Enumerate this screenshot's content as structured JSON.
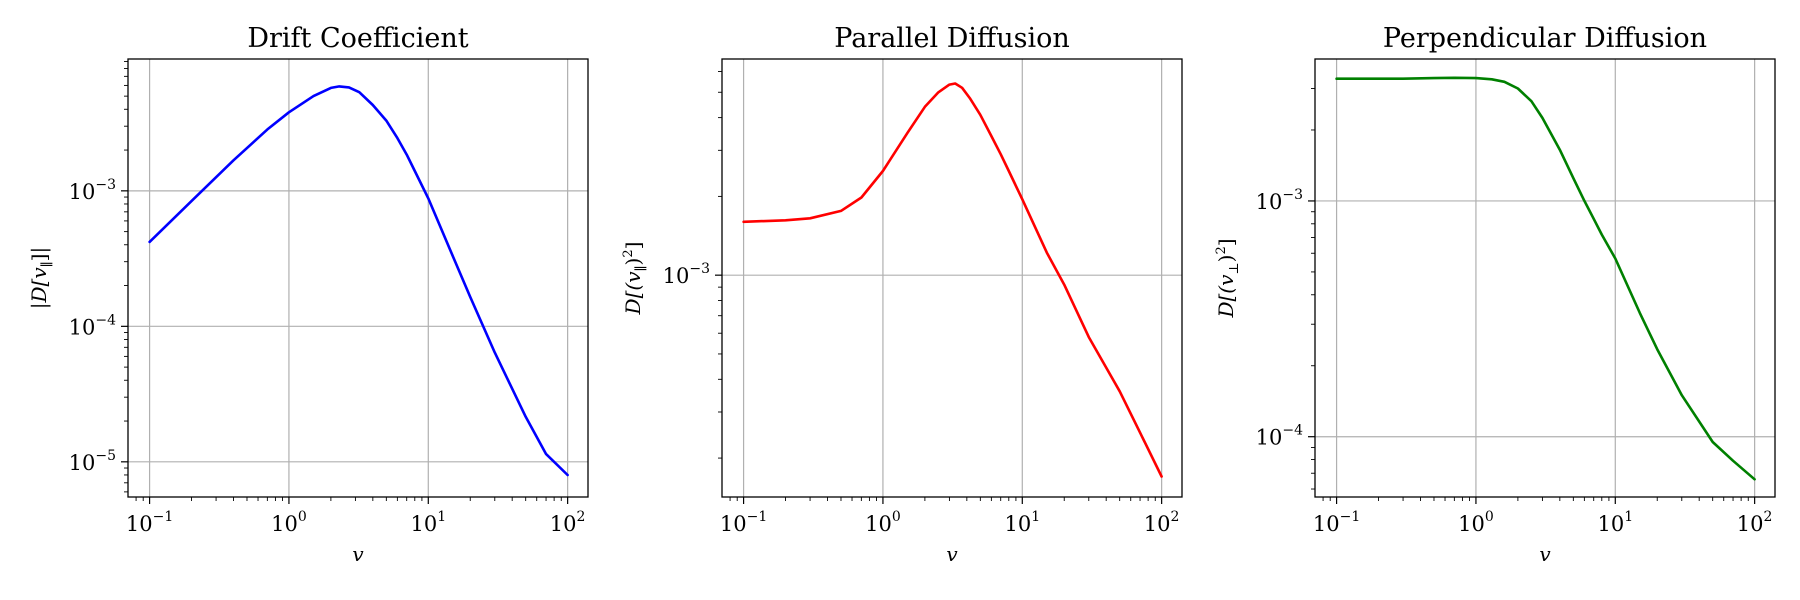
{
  "chart_data": [
    {
      "type": "line",
      "title": "Drift Coefficient",
      "xlabel": "v",
      "ylabel": "|D[v_∥]|",
      "xscale": "log",
      "yscale": "log",
      "xlim": [
        0.07,
        140
      ],
      "ylim": [
        5.5e-06,
        0.0094
      ],
      "grid": true,
      "xticks": [
        0.1,
        1,
        10,
        100
      ],
      "xtick_labels": [
        "10^-1",
        "10^0",
        "10^1",
        "10^2"
      ],
      "yticks": [
        1e-05,
        0.0001,
        0.001
      ],
      "ytick_labels": [
        "10^-5",
        "10^-4",
        "10^-3"
      ],
      "series": [
        {
          "color": "#0000ff",
          "x": [
            0.1,
            0.2,
            0.4,
            0.7,
            1.0,
            1.5,
            2.0,
            2.3,
            2.7,
            3.2,
            4,
            5,
            6,
            7,
            8,
            10,
            15,
            20,
            30,
            50,
            70,
            100
          ],
          "y": [
            0.00042,
            0.00084,
            0.00168,
            0.00284,
            0.0038,
            0.005,
            0.00575,
            0.0059,
            0.0058,
            0.00535,
            0.0043,
            0.0033,
            0.00245,
            0.00185,
            0.0014,
            0.00088,
            0.00033,
            0.000165,
            6.4e-05,
            2.15e-05,
            1.14e-05,
            8e-06
          ]
        }
      ]
    },
    {
      "type": "line",
      "title": "Parallel Diffusion",
      "xlabel": "v",
      "ylabel": "D[(v_∥)^2]",
      "xscale": "log",
      "yscale": "log",
      "xlim": [
        0.07,
        140
      ],
      "ylim": [
        0.000142,
        0.0067
      ],
      "grid": true,
      "xticks": [
        0.1,
        1,
        10,
        100
      ],
      "xtick_labels": [
        "10^-1",
        "10^0",
        "10^1",
        "10^2"
      ],
      "yticks": [
        0.001
      ],
      "ytick_labels": [
        "10^-3"
      ],
      "series": [
        {
          "color": "#ff0000",
          "x": [
            0.1,
            0.2,
            0.3,
            0.5,
            0.7,
            1.0,
            1.5,
            2.0,
            2.5,
            3.0,
            3.3,
            3.7,
            4.2,
            5,
            6,
            7,
            8,
            10,
            15,
            20,
            30,
            50,
            70,
            100
          ],
          "y": [
            0.0016,
            0.00162,
            0.00165,
            0.00176,
            0.00198,
            0.0025,
            0.0035,
            0.0044,
            0.005,
            0.00535,
            0.0054,
            0.0052,
            0.00475,
            0.0041,
            0.0034,
            0.0029,
            0.0025,
            0.00195,
            0.00122,
            0.00092,
            0.00058,
            0.00036,
            0.00025,
            0.00017
          ]
        }
      ]
    },
    {
      "type": "line",
      "title": "Perpendicular Diffusion",
      "xlabel": "v",
      "ylabel": "D[(v_⊥)^2]",
      "xscale": "log",
      "yscale": "log",
      "xlim": [
        0.07,
        140
      ],
      "ylim": [
        5.55e-05,
        0.004
      ],
      "grid": true,
      "xticks": [
        0.1,
        1,
        10,
        100
      ],
      "xtick_labels": [
        "10^-1",
        "10^0",
        "10^1",
        "10^2"
      ],
      "yticks": [
        0.0001,
        0.001
      ],
      "ytick_labels": [
        "10^-4",
        "10^-3"
      ],
      "series": [
        {
          "color": "#008000",
          "x": [
            0.1,
            0.2,
            0.3,
            0.5,
            0.7,
            1.0,
            1.3,
            1.6,
            2.0,
            2.5,
            3.0,
            4.0,
            5,
            6,
            7,
            8,
            10,
            15,
            20,
            30,
            50,
            70,
            100
          ],
          "y": [
            0.0033,
            0.0033,
            0.0033,
            0.00332,
            0.00333,
            0.00332,
            0.00328,
            0.0032,
            0.003,
            0.00265,
            0.00225,
            0.00165,
            0.00125,
            0.001,
            0.00084,
            0.00072,
            0.00057,
            0.000335,
            0.000235,
            0.00015,
            9.5e-05,
            7.9e-05,
            6.6e-05
          ]
        }
      ]
    }
  ]
}
